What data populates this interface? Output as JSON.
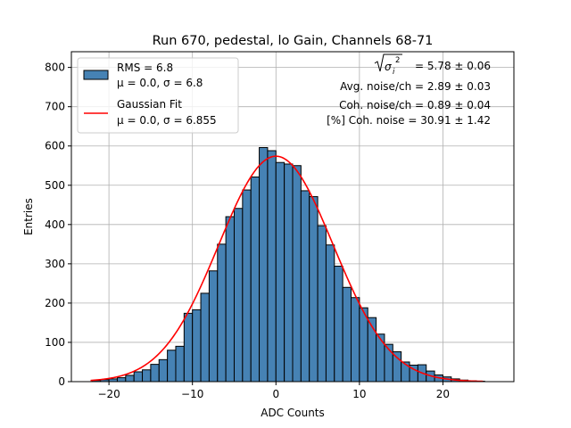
{
  "chart_data": {
    "type": "bar",
    "title": "Run 670, pedestal, lo Gain, Channels 68-71",
    "xlabel": "ADC Counts",
    "ylabel": "Entries",
    "xlim": [
      -24.5,
      28.5
    ],
    "ylim": [
      0,
      840
    ],
    "xticks": [
      -20,
      -10,
      0,
      10,
      20
    ],
    "yticks": [
      0,
      100,
      200,
      300,
      400,
      500,
      600,
      700,
      800
    ],
    "grid": true,
    "legend_position": "top-left",
    "bin_width": 1,
    "bin_start": -22,
    "counts": [
      3,
      5,
      7,
      10,
      16,
      25,
      30,
      44,
      56,
      80,
      90,
      174,
      183,
      225,
      282,
      350,
      420,
      441,
      488,
      521,
      596,
      588,
      558,
      554,
      550,
      486,
      471,
      397,
      348,
      294,
      240,
      214,
      188,
      163,
      121,
      95,
      76,
      50,
      42,
      43,
      27,
      17,
      12,
      7,
      4,
      2,
      1
    ],
    "series": [
      {
        "name": "RMS = 6.8",
        "label_line2": "μ = 0.0, σ = 6.8",
        "kind": "histogram",
        "color": "#4682b4",
        "edge": "#000000"
      },
      {
        "name": "Gaussian Fit",
        "label_line2": "μ = 0.0, σ = 6.855",
        "kind": "line",
        "color": "#ff0000",
        "mu": 0.0,
        "sigma": 6.855,
        "amplitude": 574,
        "x_range": [
          -22.2,
          24.8
        ]
      }
    ],
    "annotations": {
      "line1_value": "= 5.78 ± 0.06",
      "line2": "Avg. noise/ch = 2.89 ± 0.03",
      "line3": "Coh. noise/ch = 0.89 ± 0.04",
      "line4": "[%] Coh. noise = 30.91 ± 1.42"
    }
  }
}
